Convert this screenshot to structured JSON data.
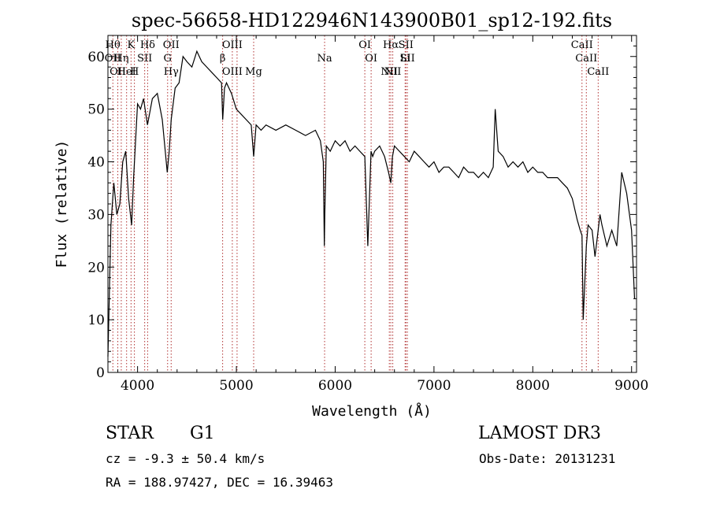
{
  "chart_data": {
    "type": "line",
    "title": "spec-56658-HD122946N143900B01_sp12-192.fits",
    "xlabel": "Wavelength (Å)",
    "ylabel": "Flux (relative)",
    "xlim": [
      3700,
      9050
    ],
    "ylim": [
      0,
      64
    ],
    "x_ticks": [
      "4000",
      "5000",
      "6000",
      "7000",
      "8000",
      "9000"
    ],
    "y_ticks": [
      "0",
      "10",
      "20",
      "30",
      "40",
      "50",
      "60"
    ],
    "grid": false,
    "series": [
      {
        "x": [
          3700,
          3730,
          3760,
          3790,
          3820,
          3850,
          3880,
          3910,
          3940,
          3960,
          3980,
          4000,
          4030,
          4060,
          4100,
          4150,
          4200,
          4250,
          4300,
          4320,
          4340,
          4380,
          4420,
          4460,
          4500,
          4550,
          4600,
          4650,
          4700,
          4750,
          4800,
          4850,
          4862,
          4880,
          4900,
          4950,
          5000,
          5050,
          5100,
          5150,
          5175,
          5200,
          5250,
          5300,
          5400,
          5500,
          5600,
          5700,
          5800,
          5850,
          5880,
          5890,
          5895,
          5910,
          5950,
          6000,
          6050,
          6100,
          6150,
          6200,
          6250,
          6300,
          6330,
          6363,
          6380,
          6400,
          6450,
          6500,
          6540,
          6563,
          6580,
          6600,
          6650,
          6700,
          6750,
          6800,
          6850,
          6900,
          6950,
          7000,
          7050,
          7100,
          7150,
          7200,
          7250,
          7300,
          7350,
          7400,
          7450,
          7500,
          7550,
          7600,
          7620,
          7650,
          7700,
          7750,
          7800,
          7850,
          7900,
          7950,
          8000,
          8050,
          8100,
          8150,
          8200,
          8250,
          8300,
          8350,
          8400,
          8450,
          8480,
          8498,
          8510,
          8542,
          8560,
          8600,
          8630,
          8662,
          8680,
          8700,
          8750,
          8800,
          8850,
          8900,
          8950,
          9000,
          9030
        ],
        "y": [
          3,
          28,
          36,
          30,
          32,
          40,
          42,
          33,
          28,
          37,
          44,
          51,
          50,
          52,
          47,
          52,
          53,
          48,
          38,
          42,
          48,
          54,
          55,
          60,
          59,
          58,
          61,
          59,
          58,
          57,
          56,
          55,
          48,
          54,
          55,
          53,
          50,
          49,
          48,
          47,
          41,
          47,
          46,
          47,
          46,
          47,
          46,
          45,
          46,
          44,
          40,
          24,
          30,
          43,
          42,
          44,
          43,
          44,
          42,
          43,
          42,
          41,
          24,
          42,
          41,
          42,
          43,
          41,
          38,
          36,
          41,
          43,
          42,
          41,
          40,
          42,
          41,
          40,
          39,
          40,
          38,
          39,
          39,
          38,
          37,
          39,
          38,
          38,
          37,
          38,
          37,
          39,
          50,
          42,
          41,
          39,
          40,
          39,
          40,
          38,
          39,
          38,
          38,
          37,
          37,
          37,
          36,
          35,
          33,
          29,
          27,
          26,
          10,
          24,
          28,
          27,
          22,
          27,
          30,
          28,
          24,
          27,
          24,
          38,
          34,
          27,
          14
        ]
      }
    ],
    "lines": [
      {
        "x": 3750,
        "top": "Hθ",
        "bottom": "OII"
      },
      {
        "x": 3800,
        "top": "",
        "bottom": "OII"
      },
      {
        "x": 3835,
        "top": "",
        "bottom": "Hη"
      },
      {
        "x": 3889,
        "top": "",
        "bottom": "HeI"
      },
      {
        "x": 3934,
        "top": "K",
        "bottom": ""
      },
      {
        "x": 3968,
        "top": "",
        "bottom": "H"
      },
      {
        "x": 4072,
        "top": "",
        "bottom": "SII"
      },
      {
        "x": 4102,
        "top": "Hδ",
        "bottom": ""
      },
      {
        "x": 4304,
        "top": "",
        "bottom": "G"
      },
      {
        "x": 4340,
        "top": "OII",
        "bottom": "Hγ"
      },
      {
        "x": 4861,
        "top": "",
        "bottom": "β"
      },
      {
        "x": 4959,
        "top": "OIII",
        "bottom": "OIII"
      },
      {
        "x": 5007,
        "top": "",
        "bottom": ""
      },
      {
        "x": 5175,
        "top": "",
        "bottom": "Mg"
      },
      {
        "x": 5893,
        "top": "",
        "bottom": "Na"
      },
      {
        "x": 6300,
        "top": "OI",
        "bottom": ""
      },
      {
        "x": 6364,
        "top": "",
        "bottom": "OI"
      },
      {
        "x": 6548,
        "top": "",
        "bottom": "NII"
      },
      {
        "x": 6563,
        "top": "Hα",
        "bottom": ""
      },
      {
        "x": 6583,
        "top": "",
        "bottom": "NII"
      },
      {
        "x": 6708,
        "top": "",
        "bottom": "Li"
      },
      {
        "x": 6716,
        "top": "SII",
        "bottom": ""
      },
      {
        "x": 6731,
        "top": "",
        "bottom": "SII"
      },
      {
        "x": 8498,
        "top": "CaII",
        "bottom": ""
      },
      {
        "x": 8542,
        "top": "",
        "bottom": "CaII"
      },
      {
        "x": 8662,
        "top": "",
        "bottom": "CaII"
      }
    ],
    "line_color": "#b03030"
  },
  "info": {
    "object_class": "STAR",
    "subclass": "G1",
    "survey": "LAMOST DR3",
    "cz": "cz = -9.3 ± 50.4 km/s",
    "obs_date": "Obs-Date: 20131231",
    "coords": "RA = 188.97427, DEC =  16.39463"
  }
}
